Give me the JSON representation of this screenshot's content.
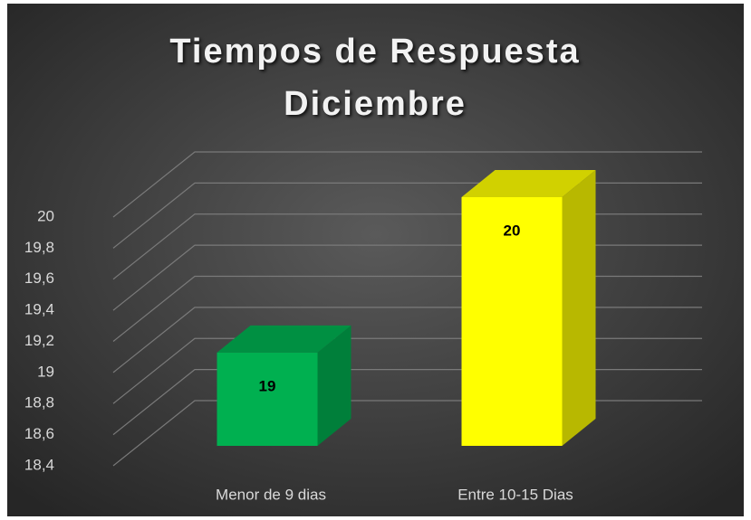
{
  "chart_data": {
    "type": "bar3d",
    "title": "Tiempos de Respuesta Diciembre",
    "categories": [
      "Menor de 9 dias",
      "Entre 10-15 Dias"
    ],
    "series": [
      {
        "name": null,
        "values": [
          19,
          20
        ],
        "colors": [
          "#00b050",
          "#ffff00"
        ]
      }
    ],
    "ylim": [
      18.4,
      20
    ],
    "yticks": [
      {
        "value": 18.4,
        "label": "18,4"
      },
      {
        "value": 18.6,
        "label": "18,6"
      },
      {
        "value": 18.8,
        "label": "18,8"
      },
      19,
      {
        "value": 19.2,
        "label": "19,2"
      },
      {
        "value": 19.4,
        "label": "19,4"
      },
      {
        "value": 19.6,
        "label": "19,6"
      },
      {
        "value": 19.8,
        "label": "19,8"
      },
      20
    ],
    "grid": true
  }
}
